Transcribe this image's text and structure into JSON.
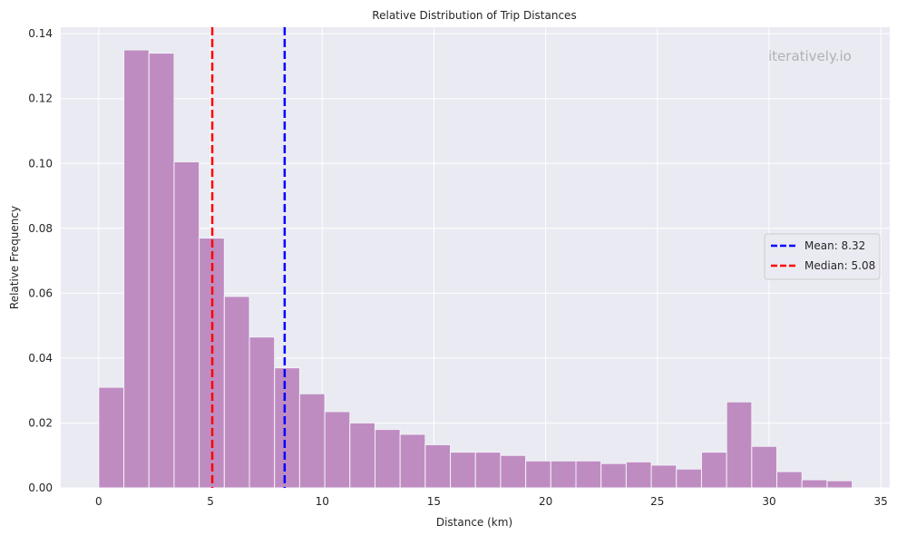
{
  "chart_data": {
    "type": "bar",
    "title": "Relative Distribution of Trip Distances",
    "xlabel": "Distance (km)",
    "ylabel": "Relative Frequency",
    "watermark": "iteratively.io",
    "xlim": [
      -1.7,
      35.4
    ],
    "ylim": [
      0,
      0.142
    ],
    "xticks": [
      0,
      5,
      10,
      15,
      20,
      25,
      30,
      35
    ],
    "yticks": [
      0.0,
      0.02,
      0.04,
      0.06,
      0.08,
      0.1,
      0.12,
      0.14
    ],
    "ytick_labels": [
      "0.00",
      "0.02",
      "0.04",
      "0.06",
      "0.08",
      "0.10",
      "0.12",
      "0.14"
    ],
    "grid": true,
    "legend_position": "center-right",
    "bin_start": 0,
    "bin_width": 1.124,
    "values": [
      0.031,
      0.135,
      0.134,
      0.1005,
      0.077,
      0.059,
      0.0465,
      0.037,
      0.029,
      0.0235,
      0.02,
      0.018,
      0.0165,
      0.0133,
      0.011,
      0.011,
      0.01,
      0.0083,
      0.0083,
      0.0083,
      0.0075,
      0.008,
      0.007,
      0.0058,
      0.011,
      0.0265,
      0.0128,
      0.005,
      0.0025,
      0.0022
    ],
    "bar_color": "#bf8cc2",
    "reference_lines": [
      {
        "name": "Mean: 8.32",
        "value": 8.32,
        "color": "#0000ff"
      },
      {
        "name": "Median: 5.08",
        "value": 5.08,
        "color": "#ff0000"
      }
    ]
  }
}
